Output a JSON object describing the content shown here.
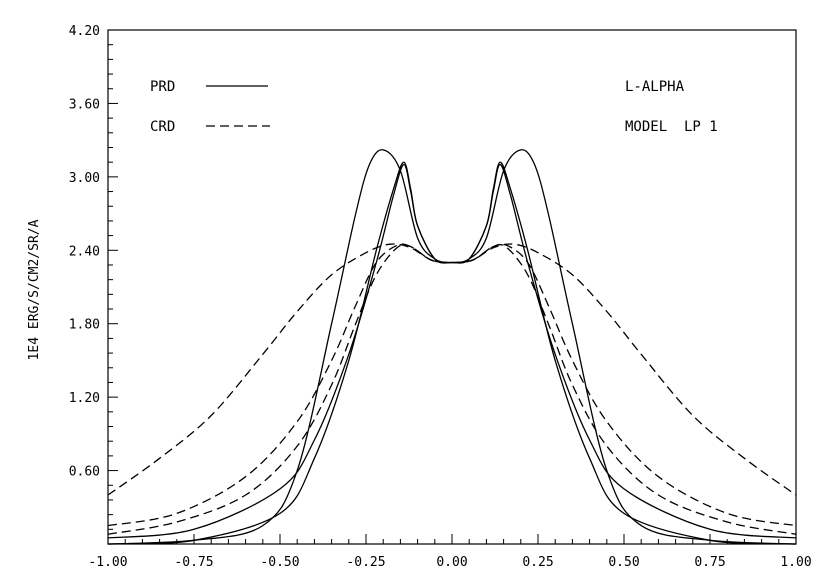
{
  "chart_data": {
    "type": "line",
    "ylabel": "1E4  ERG/S/CM2/SR/A",
    "xlabel": "",
    "xlim": [
      -1.0,
      1.0
    ],
    "ylim": [
      0.0,
      4.2
    ],
    "x_ticks": [
      "-1.00",
      "-0.75",
      "-0.50",
      "-0.25",
      "0.00",
      "0.25",
      "0.50",
      "0.75",
      "1.00"
    ],
    "y_ticks": [
      "0.60",
      "1.20",
      "1.80",
      "2.40",
      "3.00",
      "3.60",
      "4.20"
    ],
    "grid": false,
    "legend": [
      {
        "label": "PRD",
        "style": "solid"
      },
      {
        "label": "CRD",
        "style": "dashed"
      }
    ],
    "annotations": [
      "L-ALPHA",
      "MODEL  LP 1"
    ],
    "series": [
      {
        "style": "solid",
        "x": [
          -1.0,
          -0.75,
          -0.55,
          -0.45,
          -0.35,
          -0.28,
          -0.24,
          -0.2,
          -0.15,
          -0.1,
          -0.05,
          0.0,
          0.05,
          0.1,
          0.15,
          0.2,
          0.24,
          0.28,
          0.35,
          0.45,
          0.55,
          0.75,
          1.0
        ],
        "y": [
          0.0,
          0.03,
          0.15,
          0.6,
          1.8,
          2.7,
          3.1,
          3.22,
          3.05,
          2.5,
          2.33,
          2.3,
          2.33,
          2.5,
          3.05,
          3.22,
          3.1,
          2.7,
          1.8,
          0.6,
          0.15,
          0.03,
          0.0
        ]
      },
      {
        "style": "solid",
        "x": [
          -1.0,
          -0.75,
          -0.5,
          -0.4,
          -0.3,
          -0.22,
          -0.17,
          -0.14,
          -0.12,
          -0.1,
          -0.05,
          0.0,
          0.05,
          0.1,
          0.12,
          0.14,
          0.17,
          0.22,
          0.3,
          0.4,
          0.5,
          0.75,
          1.0
        ],
        "y": [
          0.0,
          0.03,
          0.25,
          0.7,
          1.5,
          2.4,
          2.9,
          3.12,
          2.9,
          2.6,
          2.33,
          2.3,
          2.33,
          2.6,
          2.9,
          3.12,
          2.9,
          2.4,
          1.5,
          0.7,
          0.25,
          0.03,
          0.0
        ]
      },
      {
        "style": "solid",
        "x": [
          -1.0,
          -0.75,
          -0.5,
          -0.4,
          -0.3,
          -0.22,
          -0.17,
          -0.14,
          -0.12,
          -0.1,
          -0.05,
          0.0,
          0.05,
          0.1,
          0.12,
          0.14,
          0.17,
          0.22,
          0.3,
          0.4,
          0.5,
          0.75,
          1.0
        ],
        "y": [
          0.05,
          0.12,
          0.45,
          0.85,
          1.55,
          2.3,
          2.85,
          3.1,
          2.88,
          2.6,
          2.33,
          2.3,
          2.33,
          2.6,
          2.88,
          3.1,
          2.85,
          2.3,
          1.55,
          0.85,
          0.45,
          0.12,
          0.05
        ]
      },
      {
        "style": "dashed",
        "x": [
          -1.0,
          -0.85,
          -0.7,
          -0.55,
          -0.45,
          -0.35,
          -0.25,
          -0.18,
          -0.12,
          -0.06,
          0.0,
          0.06,
          0.12,
          0.18,
          0.25,
          0.35,
          0.45,
          0.55,
          0.7,
          0.85,
          1.0
        ],
        "y": [
          0.4,
          0.7,
          1.05,
          1.55,
          1.9,
          2.2,
          2.38,
          2.45,
          2.42,
          2.32,
          2.3,
          2.32,
          2.42,
          2.45,
          2.38,
          2.2,
          1.9,
          1.55,
          1.05,
          0.7,
          0.4
        ]
      },
      {
        "style": "dashed",
        "x": [
          -1.0,
          -0.8,
          -0.6,
          -0.45,
          -0.35,
          -0.28,
          -0.22,
          -0.16,
          -0.12,
          -0.06,
          0.0,
          0.06,
          0.12,
          0.16,
          0.22,
          0.28,
          0.35,
          0.45,
          0.6,
          0.8,
          1.0
        ],
        "y": [
          0.15,
          0.25,
          0.55,
          1.0,
          1.5,
          1.95,
          2.3,
          2.44,
          2.43,
          2.32,
          2.3,
          2.32,
          2.43,
          2.44,
          2.3,
          1.95,
          1.5,
          1.0,
          0.55,
          0.25,
          0.15
        ]
      },
      {
        "style": "dashed",
        "x": [
          -1.0,
          -0.8,
          -0.6,
          -0.45,
          -0.35,
          -0.28,
          -0.22,
          -0.16,
          -0.12,
          -0.06,
          0.0,
          0.06,
          0.12,
          0.16,
          0.22,
          0.28,
          0.35,
          0.45,
          0.6,
          0.8,
          1.0
        ],
        "y": [
          0.08,
          0.18,
          0.4,
          0.8,
          1.3,
          1.8,
          2.2,
          2.42,
          2.43,
          2.32,
          2.3,
          2.32,
          2.43,
          2.42,
          2.2,
          1.8,
          1.3,
          0.8,
          0.4,
          0.18,
          0.08
        ]
      }
    ]
  }
}
